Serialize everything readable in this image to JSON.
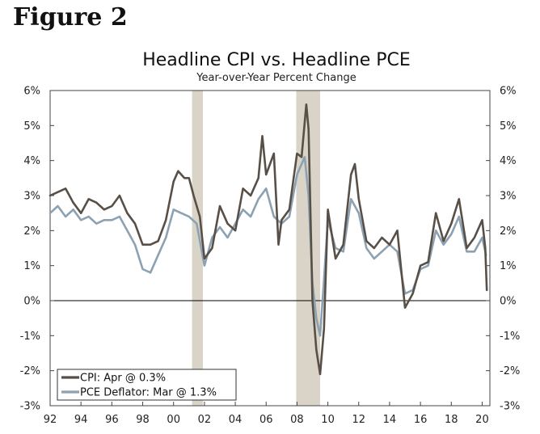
{
  "figure_label": "Figure 2",
  "chart_data": {
    "type": "line",
    "title": "Headline CPI vs. Headline PCE",
    "subtitle": "Year-over-Year Percent Change",
    "xlabel": "",
    "ylabel": "",
    "xlim": [
      1992,
      2020.5
    ],
    "ylim": [
      -3,
      6
    ],
    "y_ticks": [
      6,
      5,
      4,
      3,
      2,
      1,
      0,
      -1,
      -2,
      -3
    ],
    "y_tick_labels": [
      "6%",
      "5%",
      "4%",
      "3%",
      "2%",
      "1%",
      "0%",
      "-1%",
      "-2%",
      "-3%"
    ],
    "x_ticks": [
      1992,
      1994,
      1996,
      1998,
      2000,
      2002,
      2004,
      2006,
      2008,
      2010,
      2012,
      2014,
      2016,
      2018,
      2020
    ],
    "x_tick_labels": [
      "92",
      "94",
      "96",
      "98",
      "00",
      "02",
      "04",
      "06",
      "08",
      "10",
      "12",
      "14",
      "16",
      "18",
      "20"
    ],
    "recessions": [
      [
        2001.2,
        2001.9
      ],
      [
        2007.95,
        2009.5
      ]
    ],
    "legend_position": "bottom-left",
    "colors": {
      "cpi": "#584f47",
      "pce": "#8ca1b1",
      "recession": "#d9d3c8",
      "zero_line": "#000000",
      "frame": "#444444"
    },
    "series": [
      {
        "name": "CPI: Apr @ 0.3%",
        "key": "cpi",
        "x": [
          1992,
          1992.5,
          1993,
          1993.5,
          1994,
          1994.5,
          1995,
          1995.5,
          1996,
          1996.5,
          1997,
          1997.5,
          1998,
          1998.5,
          1999,
          1999.5,
          2000,
          2000.3,
          2000.7,
          2001,
          2001.3,
          2001.7,
          2002,
          2002.5,
          2003,
          2003.5,
          2004,
          2004.5,
          2005,
          2005.5,
          2005.75,
          2006,
          2006.5,
          2006.8,
          2007,
          2007.5,
          2008,
          2008.3,
          2008.6,
          2008.75,
          2009,
          2009.25,
          2009.5,
          2009.75,
          2010,
          2010.5,
          2011,
          2011.5,
          2011.75,
          2012,
          2012.5,
          2013,
          2013.5,
          2014,
          2014.5,
          2015,
          2015.5,
          2016,
          2016.5,
          2017,
          2017.5,
          2018,
          2018.5,
          2019,
          2019.5,
          2020,
          2020.2,
          2020.3
        ],
        "values": [
          3.0,
          3.1,
          3.2,
          2.8,
          2.5,
          2.9,
          2.8,
          2.6,
          2.7,
          3.0,
          2.5,
          2.2,
          1.6,
          1.6,
          1.7,
          2.3,
          3.4,
          3.7,
          3.5,
          3.5,
          3.0,
          2.4,
          1.2,
          1.5,
          2.7,
          2.2,
          2.0,
          3.2,
          3.0,
          3.5,
          4.7,
          3.6,
          4.2,
          1.6,
          2.3,
          2.6,
          4.2,
          4.1,
          5.6,
          4.9,
          0.0,
          -1.4,
          -2.1,
          -0.8,
          2.6,
          1.2,
          1.6,
          3.6,
          3.9,
          2.9,
          1.7,
          1.5,
          1.8,
          1.6,
          2.0,
          -0.2,
          0.2,
          1.0,
          1.1,
          2.5,
          1.7,
          2.2,
          2.9,
          1.5,
          1.8,
          2.3,
          1.5,
          0.3
        ]
      },
      {
        "name": "PCE Deflator: Mar @ 1.3%",
        "key": "pce",
        "x": [
          1992,
          1992.5,
          1993,
          1993.5,
          1994,
          1994.5,
          1995,
          1995.5,
          1996,
          1996.5,
          1997,
          1997.5,
          1998,
          1998.5,
          1999,
          1999.5,
          2000,
          2000.5,
          2001,
          2001.5,
          2002,
          2002.5,
          2003,
          2003.5,
          2004,
          2004.5,
          2005,
          2005.5,
          2006,
          2006.5,
          2007,
          2007.5,
          2008,
          2008.5,
          2008.75,
          2009,
          2009.25,
          2009.5,
          2009.75,
          2010,
          2010.5,
          2011,
          2011.5,
          2012,
          2012.5,
          2013,
          2013.5,
          2014,
          2014.5,
          2015,
          2015.5,
          2016,
          2016.5,
          2017,
          2017.5,
          2018,
          2018.5,
          2019,
          2019.5,
          2020,
          2020.25
        ],
        "values": [
          2.5,
          2.7,
          2.4,
          2.6,
          2.3,
          2.4,
          2.2,
          2.3,
          2.3,
          2.4,
          2.0,
          1.6,
          0.9,
          0.8,
          1.3,
          1.8,
          2.6,
          2.5,
          2.4,
          2.2,
          1.0,
          1.8,
          2.1,
          1.8,
          2.2,
          2.6,
          2.4,
          2.9,
          3.2,
          2.4,
          2.2,
          2.4,
          3.6,
          4.1,
          3.0,
          0.5,
          -0.5,
          -1.0,
          0.6,
          2.3,
          1.5,
          1.4,
          2.9,
          2.5,
          1.5,
          1.2,
          1.4,
          1.6,
          1.4,
          0.2,
          0.3,
          0.9,
          1.0,
          2.0,
          1.6,
          1.9,
          2.4,
          1.4,
          1.4,
          1.8,
          1.3
        ]
      }
    ]
  }
}
